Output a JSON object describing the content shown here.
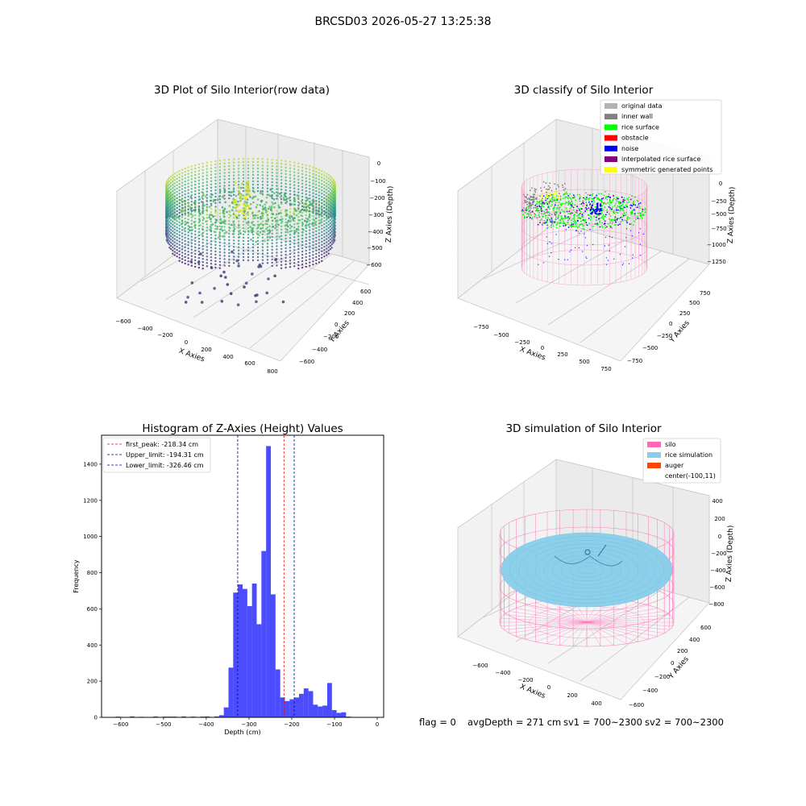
{
  "figure_title": "BRCSD03 2026-05-27 13:25:38",
  "status_line": {
    "flag": "flag = 0",
    "avg_depth": "avgDepth = 271 cm",
    "sv1": "sv1 = 700~2300",
    "sv2": "sv2 = 700~2300"
  },
  "colors": {
    "hist_bar": "#0000ff",
    "first_peak_line": "#ff0000",
    "limit_lines": "#00008b",
    "original_data": "#b3b3b3",
    "inner_wall": "#808080",
    "rice_surface": "#00ff00",
    "obstacle": "#ff0000",
    "noise": "#0000ff",
    "interpolated_rice_surface": "#800080",
    "symmetric_generated_points": "#ffff00",
    "silo": "#ff69b4",
    "rice_simulation": "#87ceeb",
    "auger": "#ff4500"
  },
  "chart_data": [
    {
      "type": "scatter",
      "title": "3D Plot of Silo Interior(row data)",
      "xlabel": "X Axies",
      "ylabel": "Y Axies",
      "zlabel": "Z Axies (Depth)",
      "x_ticks": [
        "−600",
        "−400",
        "−200",
        "0",
        "200",
        "400",
        "600",
        "800"
      ],
      "y_ticks": [
        "−600",
        "−400",
        "−200",
        "0",
        "200",
        "400",
        "600"
      ],
      "z_ticks": [
        "0",
        "−100",
        "−200",
        "−300",
        "−400",
        "−500",
        "−600"
      ],
      "xlim": [
        -600,
        800
      ],
      "ylim": [
        -600,
        600
      ],
      "zlim": [
        -600,
        0
      ],
      "surface_depth_range": [
        -330,
        -60
      ],
      "colormap": "viridis"
    },
    {
      "type": "scatter",
      "title": "3D classify of Silo Interior",
      "xlabel": "X Axies",
      "ylabel": "Y Axies",
      "zlabel": "Z Axies (Depth)",
      "x_ticks": [
        "−750",
        "−500",
        "−250",
        "0",
        "250",
        "500",
        "750"
      ],
      "y_ticks": [
        "−750",
        "−500",
        "−250",
        "0",
        "250",
        "500",
        "750"
      ],
      "z_ticks": [
        "0",
        "−250",
        "−500",
        "−750",
        "−1000",
        "−1250"
      ],
      "z_ticks_hidden": [
        "250"
      ],
      "xlim": [
        -750,
        750
      ],
      "ylim": [
        -750,
        750
      ],
      "zlim": [
        -1250,
        250
      ],
      "legend_position": "top-right",
      "legend": [
        {
          "label": "original data",
          "color_key": "original_data"
        },
        {
          "label": "inner wall",
          "color_key": "inner_wall"
        },
        {
          "label": "rice surface",
          "color_key": "rice_surface"
        },
        {
          "label": "obstacle",
          "color_key": "obstacle"
        },
        {
          "label": "noise",
          "color_key": "noise"
        },
        {
          "label": "interpolated rice surface",
          "color_key": "interpolated_rice_surface"
        },
        {
          "label": "symmetric generated points",
          "color_key": "symmetric_generated_points"
        }
      ]
    },
    {
      "type": "bar",
      "title": "Histogram of Z-Axies (Height) Values",
      "xlabel": "Depth (cm)",
      "ylabel": "Frequency",
      "xlim": [
        -645,
        15
      ],
      "ylim": [
        0,
        1560
      ],
      "x_ticks": [
        -600,
        -500,
        -400,
        -300,
        -200,
        -100,
        0
      ],
      "x_tick_labels": [
        "−600",
        "−500",
        "−400",
        "−300",
        "−200",
        "−100",
        "0"
      ],
      "y_ticks": [
        0,
        200,
        400,
        600,
        800,
        1000,
        1200,
        1400
      ],
      "y_tick_labels": [
        "0",
        "200",
        "400",
        "600",
        "800",
        "1000",
        "1200",
        "1400"
      ],
      "bin_start": -645,
      "bin_width": 11,
      "values": [
        0,
        0,
        0,
        4,
        0,
        0,
        5,
        0,
        3,
        0,
        0,
        5,
        0,
        4,
        4,
        4,
        0,
        5,
        0,
        4,
        0,
        4,
        5,
        0,
        5,
        12,
        55,
        275,
        690,
        735,
        710,
        615,
        740,
        515,
        920,
        1500,
        680,
        265,
        110,
        90,
        100,
        110,
        130,
        160,
        145,
        70,
        60,
        65,
        190,
        40,
        25,
        28,
        4,
        0,
        0,
        0,
        0,
        0,
        0,
        0
      ],
      "legend_position": "top-left",
      "reference_lines": [
        {
          "label": "first_peak: -218.34 cm",
          "x": -218.34,
          "color_key": "first_peak_line"
        },
        {
          "label": "Upper_limit: -194.31 cm",
          "x": -194.31,
          "color_key": "limit_lines"
        },
        {
          "label": "Lower_limit: -326.46 cm",
          "x": -326.46,
          "color_key": "limit_lines"
        }
      ]
    },
    {
      "type": "scatter",
      "title": "3D simulation of Silo Interior",
      "xlabel": "X Axies",
      "ylabel": "Y Axies",
      "zlabel": "Z Axies (Depth)",
      "x_ticks": [
        "−600",
        "−400",
        "−200",
        "0",
        "200",
        "400"
      ],
      "y_ticks": [
        "−600",
        "−400",
        "−200",
        "0",
        "200",
        "400",
        "600"
      ],
      "z_ticks": [
        "400",
        "200",
        "0",
        "−200",
        "−400",
        "−600",
        "−800"
      ],
      "xlim": [
        -700,
        500
      ],
      "ylim": [
        -600,
        600
      ],
      "zlim": [
        -800,
        400
      ],
      "legend_position": "top-right",
      "legend": [
        {
          "label": "silo",
          "color_key": "silo"
        },
        {
          "label": "rice simulation",
          "color_key": "rice_simulation"
        },
        {
          "label": "auger",
          "color_key": "auger"
        },
        {
          "label": "center(-100,11)",
          "color_key": ""
        }
      ]
    }
  ]
}
